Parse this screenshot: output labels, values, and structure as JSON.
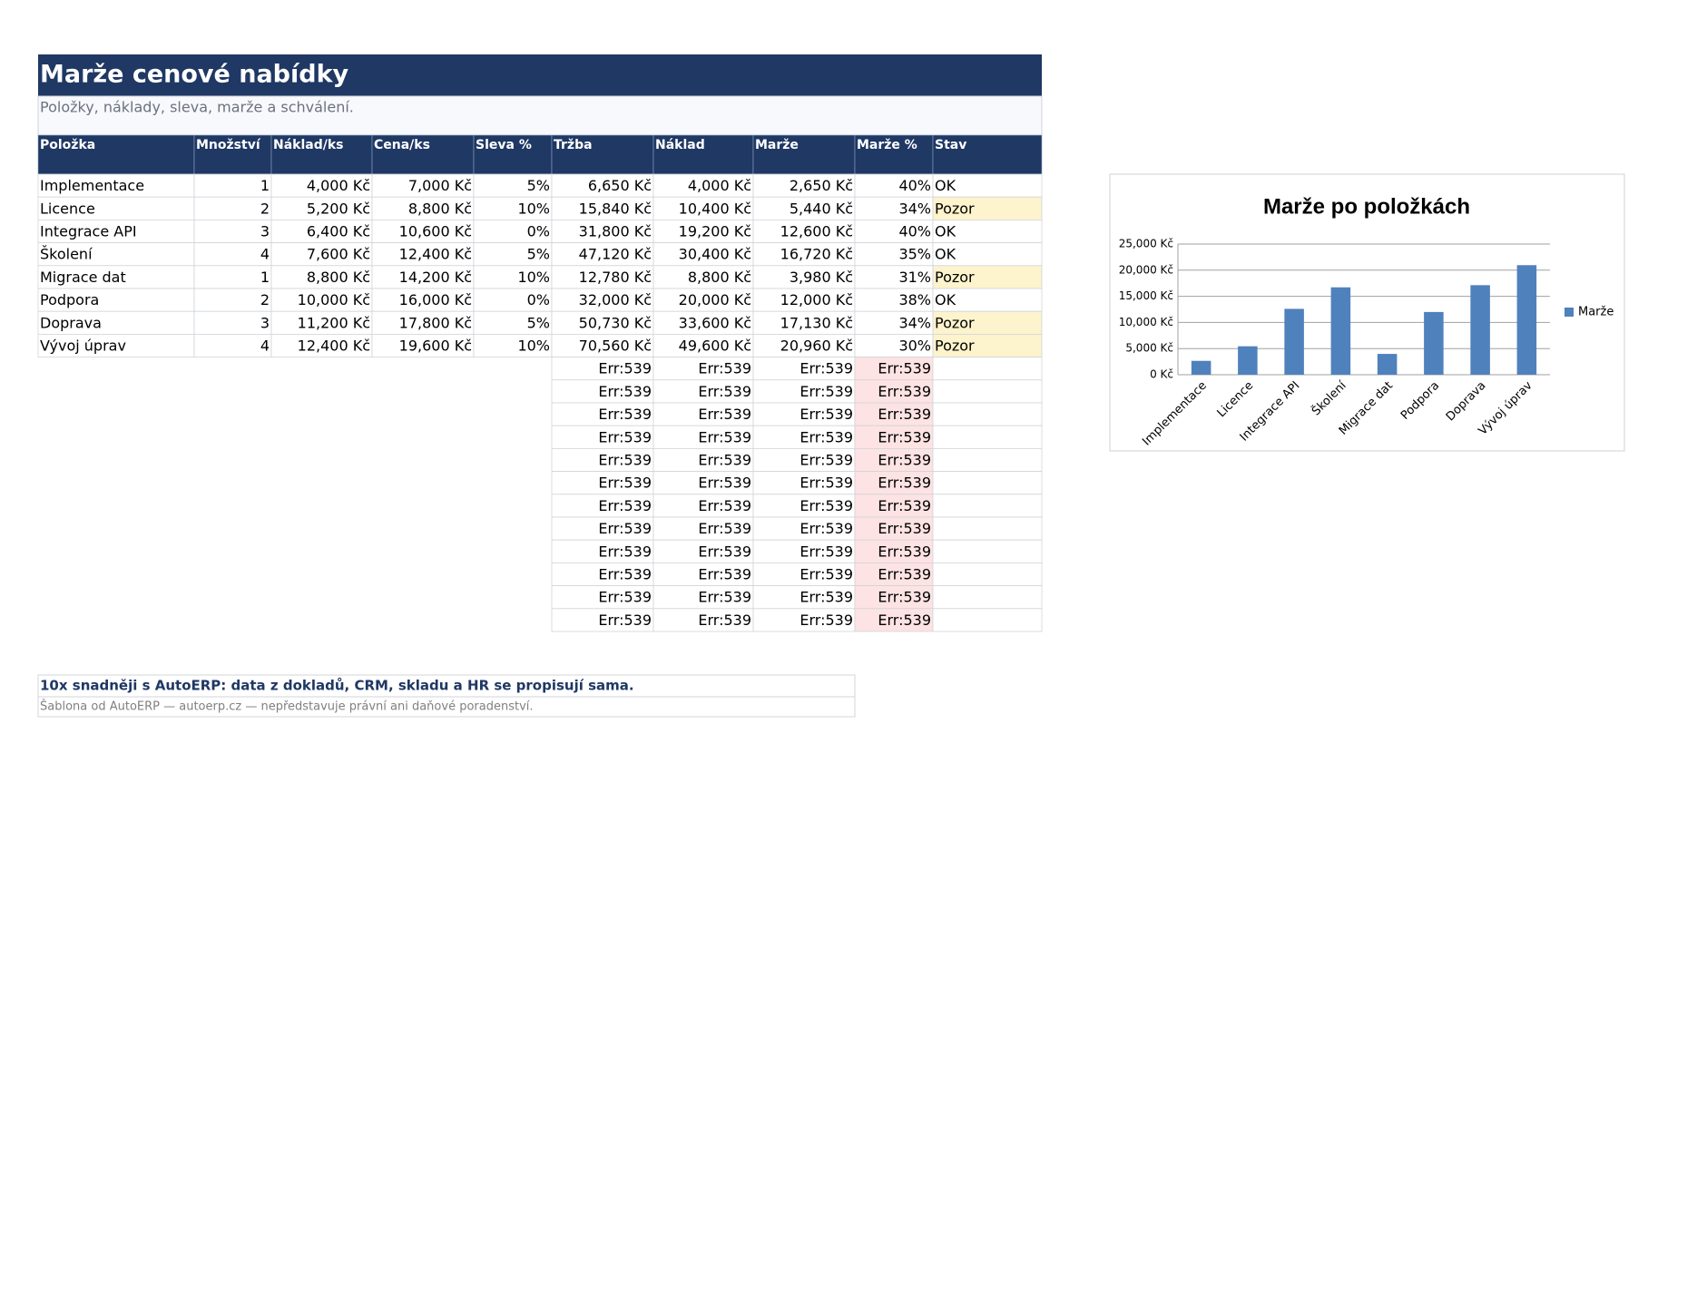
{
  "header": {
    "title": "Marže cenové nabídky",
    "subtitle": "Položky, náklady, sleva, marže a schválení."
  },
  "table": {
    "columns": [
      "Položka",
      "Množství",
      "Náklad/ks",
      "Cena/ks",
      "Sleva %",
      "Tržba",
      "Náklad",
      "Marže",
      "Marže %",
      "Stav"
    ],
    "rows": [
      [
        "Implementace",
        "1",
        "4,000 Kč",
        "7,000 Kč",
        "5%",
        "6,650 Kč",
        "4,000 Kč",
        "2,650 Kč",
        "40%",
        "OK"
      ],
      [
        "Licence",
        "2",
        "5,200 Kč",
        "8,800 Kč",
        "10%",
        "15,840 Kč",
        "10,400 Kč",
        "5,440 Kč",
        "34%",
        "Pozor"
      ],
      [
        "Integrace API",
        "3",
        "6,400 Kč",
        "10,600 Kč",
        "0%",
        "31,800 Kč",
        "19,200 Kč",
        "12,600 Kč",
        "40%",
        "OK"
      ],
      [
        "Školení",
        "4",
        "7,600 Kč",
        "12,400 Kč",
        "5%",
        "47,120 Kč",
        "30,400 Kč",
        "16,720 Kč",
        "35%",
        "OK"
      ],
      [
        "Migrace dat",
        "1",
        "8,800 Kč",
        "14,200 Kč",
        "10%",
        "12,780 Kč",
        "8,800 Kč",
        "3,980 Kč",
        "31%",
        "Pozor"
      ],
      [
        "Podpora",
        "2",
        "10,000 Kč",
        "16,000 Kč",
        "0%",
        "32,000 Kč",
        "20,000 Kč",
        "12,000 Kč",
        "38%",
        "OK"
      ],
      [
        "Doprava",
        "3",
        "11,200 Kč",
        "17,800 Kč",
        "5%",
        "50,730 Kč",
        "33,600 Kč",
        "17,130 Kč",
        "34%",
        "Pozor"
      ],
      [
        "Vývoj úprav",
        "4",
        "12,400 Kč",
        "19,600 Kč",
        "10%",
        "70,560 Kč",
        "49,600 Kč",
        "20,960 Kč",
        "30%",
        "Pozor"
      ]
    ],
    "error_rows": [
      [
        "Err:539",
        "Err:539",
        "Err:539",
        "Err:539"
      ],
      [
        "Err:539",
        "Err:539",
        "Err:539",
        "Err:539"
      ],
      [
        "Err:539",
        "Err:539",
        "Err:539",
        "Err:539"
      ],
      [
        "Err:539",
        "Err:539",
        "Err:539",
        "Err:539"
      ],
      [
        "Err:539",
        "Err:539",
        "Err:539",
        "Err:539"
      ],
      [
        "Err:539",
        "Err:539",
        "Err:539",
        "Err:539"
      ],
      [
        "Err:539",
        "Err:539",
        "Err:539",
        "Err:539"
      ],
      [
        "Err:539",
        "Err:539",
        "Err:539",
        "Err:539"
      ],
      [
        "Err:539",
        "Err:539",
        "Err:539",
        "Err:539"
      ],
      [
        "Err:539",
        "Err:539",
        "Err:539",
        "Err:539"
      ],
      [
        "Err:539",
        "Err:539",
        "Err:539",
        "Err:539"
      ],
      [
        "Err:539",
        "Err:539",
        "Err:539",
        "Err:539"
      ]
    ]
  },
  "footer": {
    "promo": "10x snadněji s AutoERP: data z dokladů, CRM, skladu a HR se propisují sama.",
    "note": "Šablona od AutoERP — autoerp.cz — nepředstavuje právní ani daňové poradenství."
  },
  "chart_data": {
    "type": "bar",
    "title": "Marže po položkách",
    "categories": [
      "Implementace",
      "Licence",
      "Integrace API",
      "Školení",
      "Migrace dat",
      "Podpora",
      "Doprava",
      "Vývoj úprav"
    ],
    "series": [
      {
        "name": "Marže",
        "color": "#4f81bd",
        "values": [
          2650,
          5440,
          12600,
          16720,
          3980,
          12000,
          17130,
          20960
        ]
      }
    ],
    "ylim": [
      0,
      25000
    ],
    "yticks": [
      {
        "value": 0,
        "label": "0 Kč"
      },
      {
        "value": 5000,
        "label": "5,000 Kč"
      },
      {
        "value": 10000,
        "label": "10,000 Kč"
      },
      {
        "value": 15000,
        "label": "15,000 Kč"
      },
      {
        "value": 20000,
        "label": "20,000 Kč"
      },
      {
        "value": 25000,
        "label": "25,000 Kč"
      }
    ],
    "grid": true,
    "legend": "right"
  }
}
